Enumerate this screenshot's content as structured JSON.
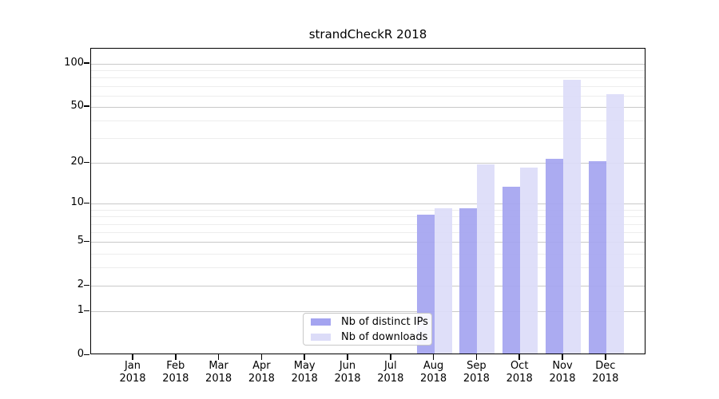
{
  "title": "strandCheckR 2018",
  "chart_data": {
    "type": "bar",
    "title": "strandCheckR 2018",
    "categories": [
      "Jan",
      "Feb",
      "Mar",
      "Apr",
      "May",
      "Jun",
      "Jul",
      "Aug",
      "Sep",
      "Oct",
      "Nov",
      "Dec"
    ],
    "year": "2018",
    "series": [
      {
        "name": "Nb of distinct IPs",
        "color": "#a4a4f0",
        "values": [
          0,
          0,
          0,
          0,
          0,
          0,
          0,
          8,
          9,
          13,
          21,
          20
        ]
      },
      {
        "name": "Nb of downloads",
        "color": "#dcdcf8",
        "values": [
          0,
          0,
          0,
          0,
          0,
          0,
          0,
          9,
          19,
          18,
          75,
          60
        ]
      }
    ],
    "xlabel": "",
    "ylabel": "",
    "yaxis": {
      "scale": "log1p",
      "tick_values": [
        0,
        1,
        2,
        5,
        10,
        20,
        50,
        100
      ],
      "minor_gridline_values": [
        3,
        4,
        6,
        7,
        8,
        9,
        30,
        40,
        60,
        70,
        80,
        90
      ],
      "ylim": [
        0,
        127
      ]
    },
    "grid": "on",
    "legend_position": "lower center"
  },
  "colors": {
    "major_gridline": "#c9c9c9",
    "minor_gridline": "#ededed",
    "spine": "#000000",
    "legend_border": "#c8c8c8",
    "background": "#ffffff"
  }
}
